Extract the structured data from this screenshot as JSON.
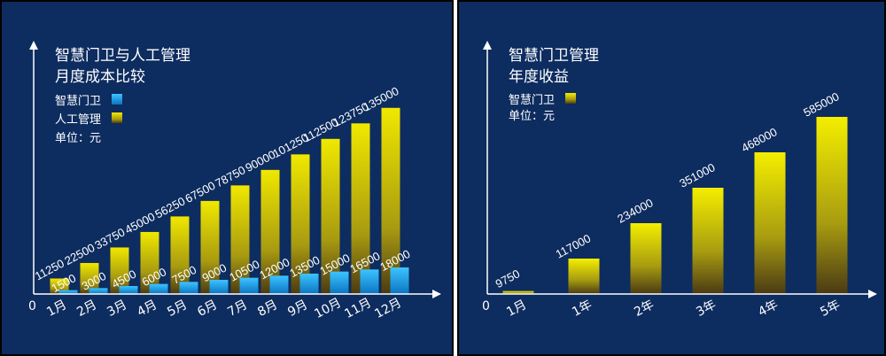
{
  "chart_data": [
    {
      "type": "bar",
      "title": "智慧门卫与人工管理",
      "subtitle": "月度成本比较",
      "unit_label": "单位：元",
      "origin_label": "0",
      "categories": [
        "1月",
        "2月",
        "3月",
        "4月",
        "5月",
        "6月",
        "7月",
        "8月",
        "9月",
        "10月",
        "11月",
        "12月"
      ],
      "series": [
        {
          "name": "智慧门卫",
          "color": "#1fa0e6",
          "values": [
            1500,
            3000,
            4500,
            6000,
            7500,
            9000,
            10500,
            12000,
            13500,
            15000,
            16500,
            18000
          ]
        },
        {
          "name": "人工管理",
          "color": "#d4c600",
          "values": [
            11250,
            22500,
            33750,
            45000,
            56250,
            67500,
            78750,
            90000,
            101250,
            112500,
            123750,
            135000
          ]
        }
      ],
      "ylim": [
        0,
        140000
      ],
      "legend": "top-left"
    },
    {
      "type": "bar",
      "title": "智慧门卫管理",
      "subtitle": "年度收益",
      "unit_label": "单位：元",
      "origin_label": "0",
      "categories": [
        "1月",
        "1年",
        "2年",
        "3年",
        "4年",
        "5年"
      ],
      "series": [
        {
          "name": "智慧门卫",
          "color": "#e8e000",
          "values": [
            9750,
            117000,
            234000,
            351000,
            468000,
            585000
          ]
        }
      ],
      "ylim": [
        0,
        600000
      ],
      "legend": "top-left"
    }
  ]
}
